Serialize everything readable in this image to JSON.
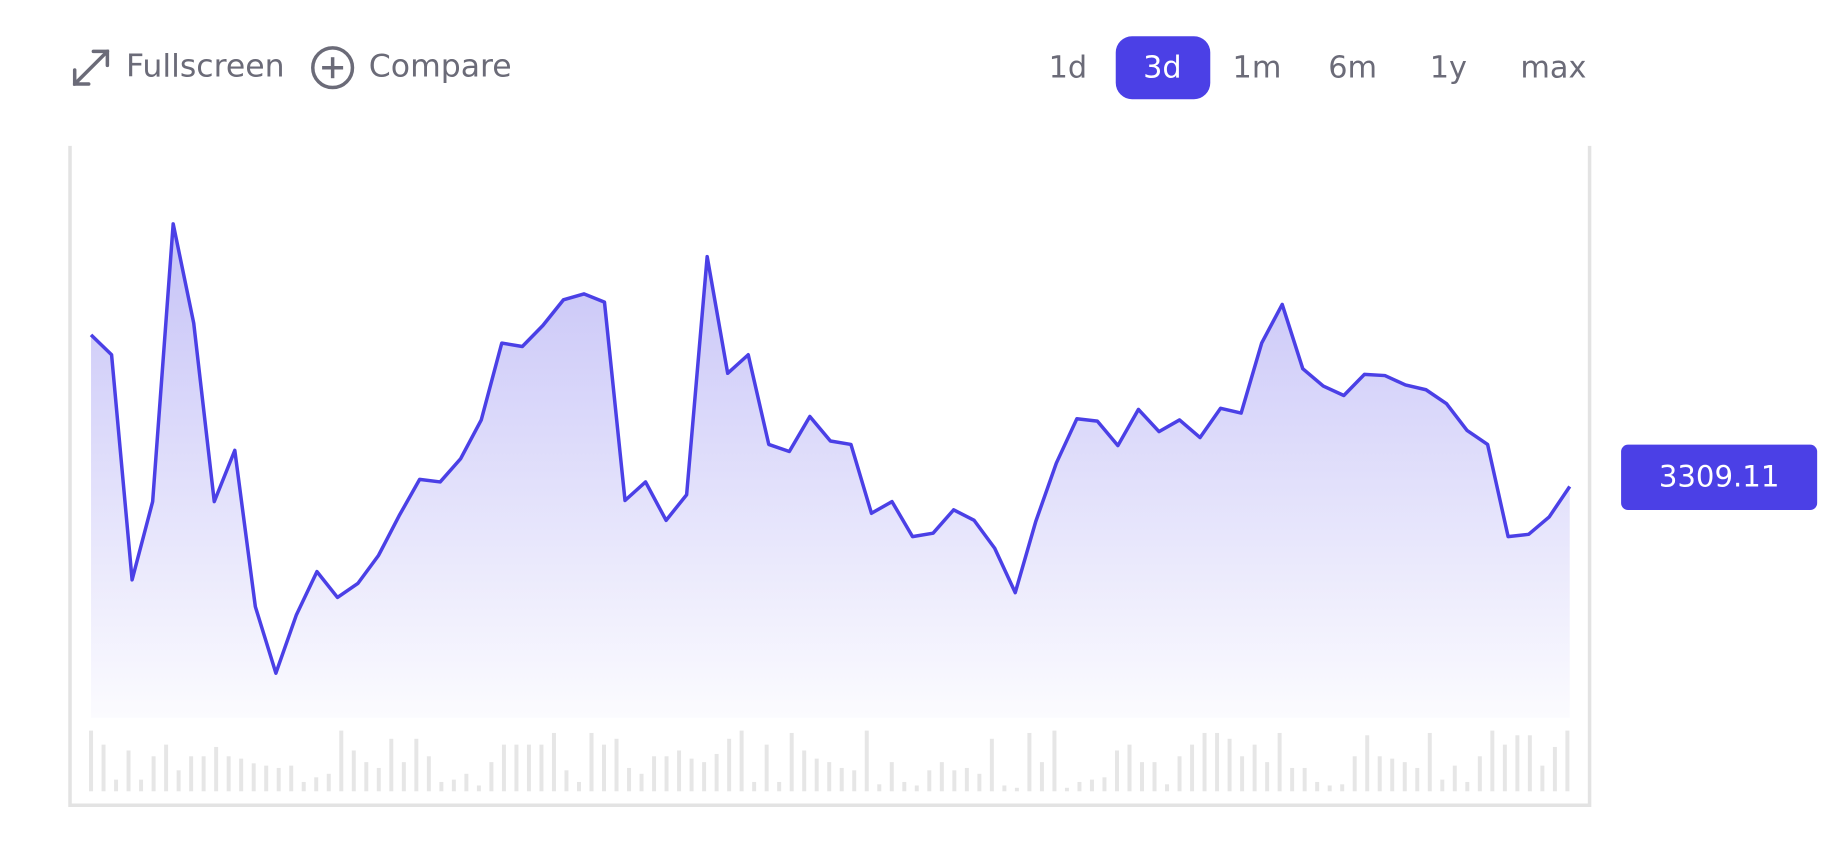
{
  "toolbar": {
    "fullscreen": "Fullscreen",
    "compare": "Compare",
    "ranges": [
      "1d",
      "3d",
      "1m",
      "6m",
      "1y",
      "max"
    ],
    "active_range_index": 1
  },
  "chart_data": {
    "type": "area",
    "color": "#4b40e6",
    "values": [
      3375.4,
      3366.7,
      3268.3,
      3302.5,
      3423.9,
      3380.5,
      3302.5,
      3324.9,
      3256.6,
      3227.5,
      3253.0,
      3271.9,
      3260.6,
      3266.8,
      3279.0,
      3296.3,
      3312.2,
      3311.1,
      3321.3,
      3338.2,
      3371.8,
      3370.3,
      3379.5,
      3390.7,
      3393.3,
      3389.7,
      3303.0,
      3311.1,
      3294.3,
      3305.5,
      3409.6,
      3358.6,
      3366.7,
      3327.5,
      3324.4,
      3339.7,
      3329.0,
      3327.5,
      3297.4,
      3302.5,
      3287.2,
      3288.7,
      3298.9,
      3294.3,
      3282.1,
      3262.7,
      3293.8,
      3319.3,
      3338.7,
      3337.7,
      3327.0,
      3342.8,
      3333.1,
      3338.2,
      3330.5,
      3343.3,
      3341.2,
      3371.8,
      3388.7,
      3360.6,
      3353.0,
      3348.9,
      3358.1,
      3357.6,
      3353.5,
      3351.4,
      3345.3,
      3333.6,
      3327.5,
      3287.2,
      3288.2,
      3295.8,
      3309.11
    ],
    "ylim": [
      3208,
      3458
    ],
    "volume": {
      "color": "#e6e6e6",
      "ylim": [
        0,
        60
      ],
      "values": [
        52,
        40,
        10,
        35,
        10,
        30,
        40,
        18,
        30,
        30,
        38,
        30,
        28,
        24,
        22,
        20,
        22,
        8,
        12,
        15,
        52,
        35,
        25,
        20,
        45,
        25,
        45,
        30,
        8,
        10,
        15,
        5,
        25,
        40,
        40,
        40,
        40,
        50,
        18,
        8,
        50,
        40,
        45,
        20,
        15,
        30,
        30,
        35,
        28,
        25,
        32,
        45,
        52,
        8,
        40,
        8,
        50,
        35,
        28,
        25,
        20,
        18,
        52,
        6,
        25,
        8,
        5,
        18,
        25,
        18,
        20,
        15,
        45,
        5,
        3,
        50,
        25,
        52,
        3,
        8,
        10,
        12,
        35,
        40,
        25,
        25,
        6,
        30,
        40,
        50,
        50,
        45,
        30,
        40,
        25,
        50,
        20,
        20,
        8,
        5,
        6,
        30,
        48,
        30,
        28,
        25,
        20,
        50,
        10,
        22,
        8,
        30,
        52,
        40,
        48,
        48,
        22,
        38,
        52
      ]
    }
  }
}
